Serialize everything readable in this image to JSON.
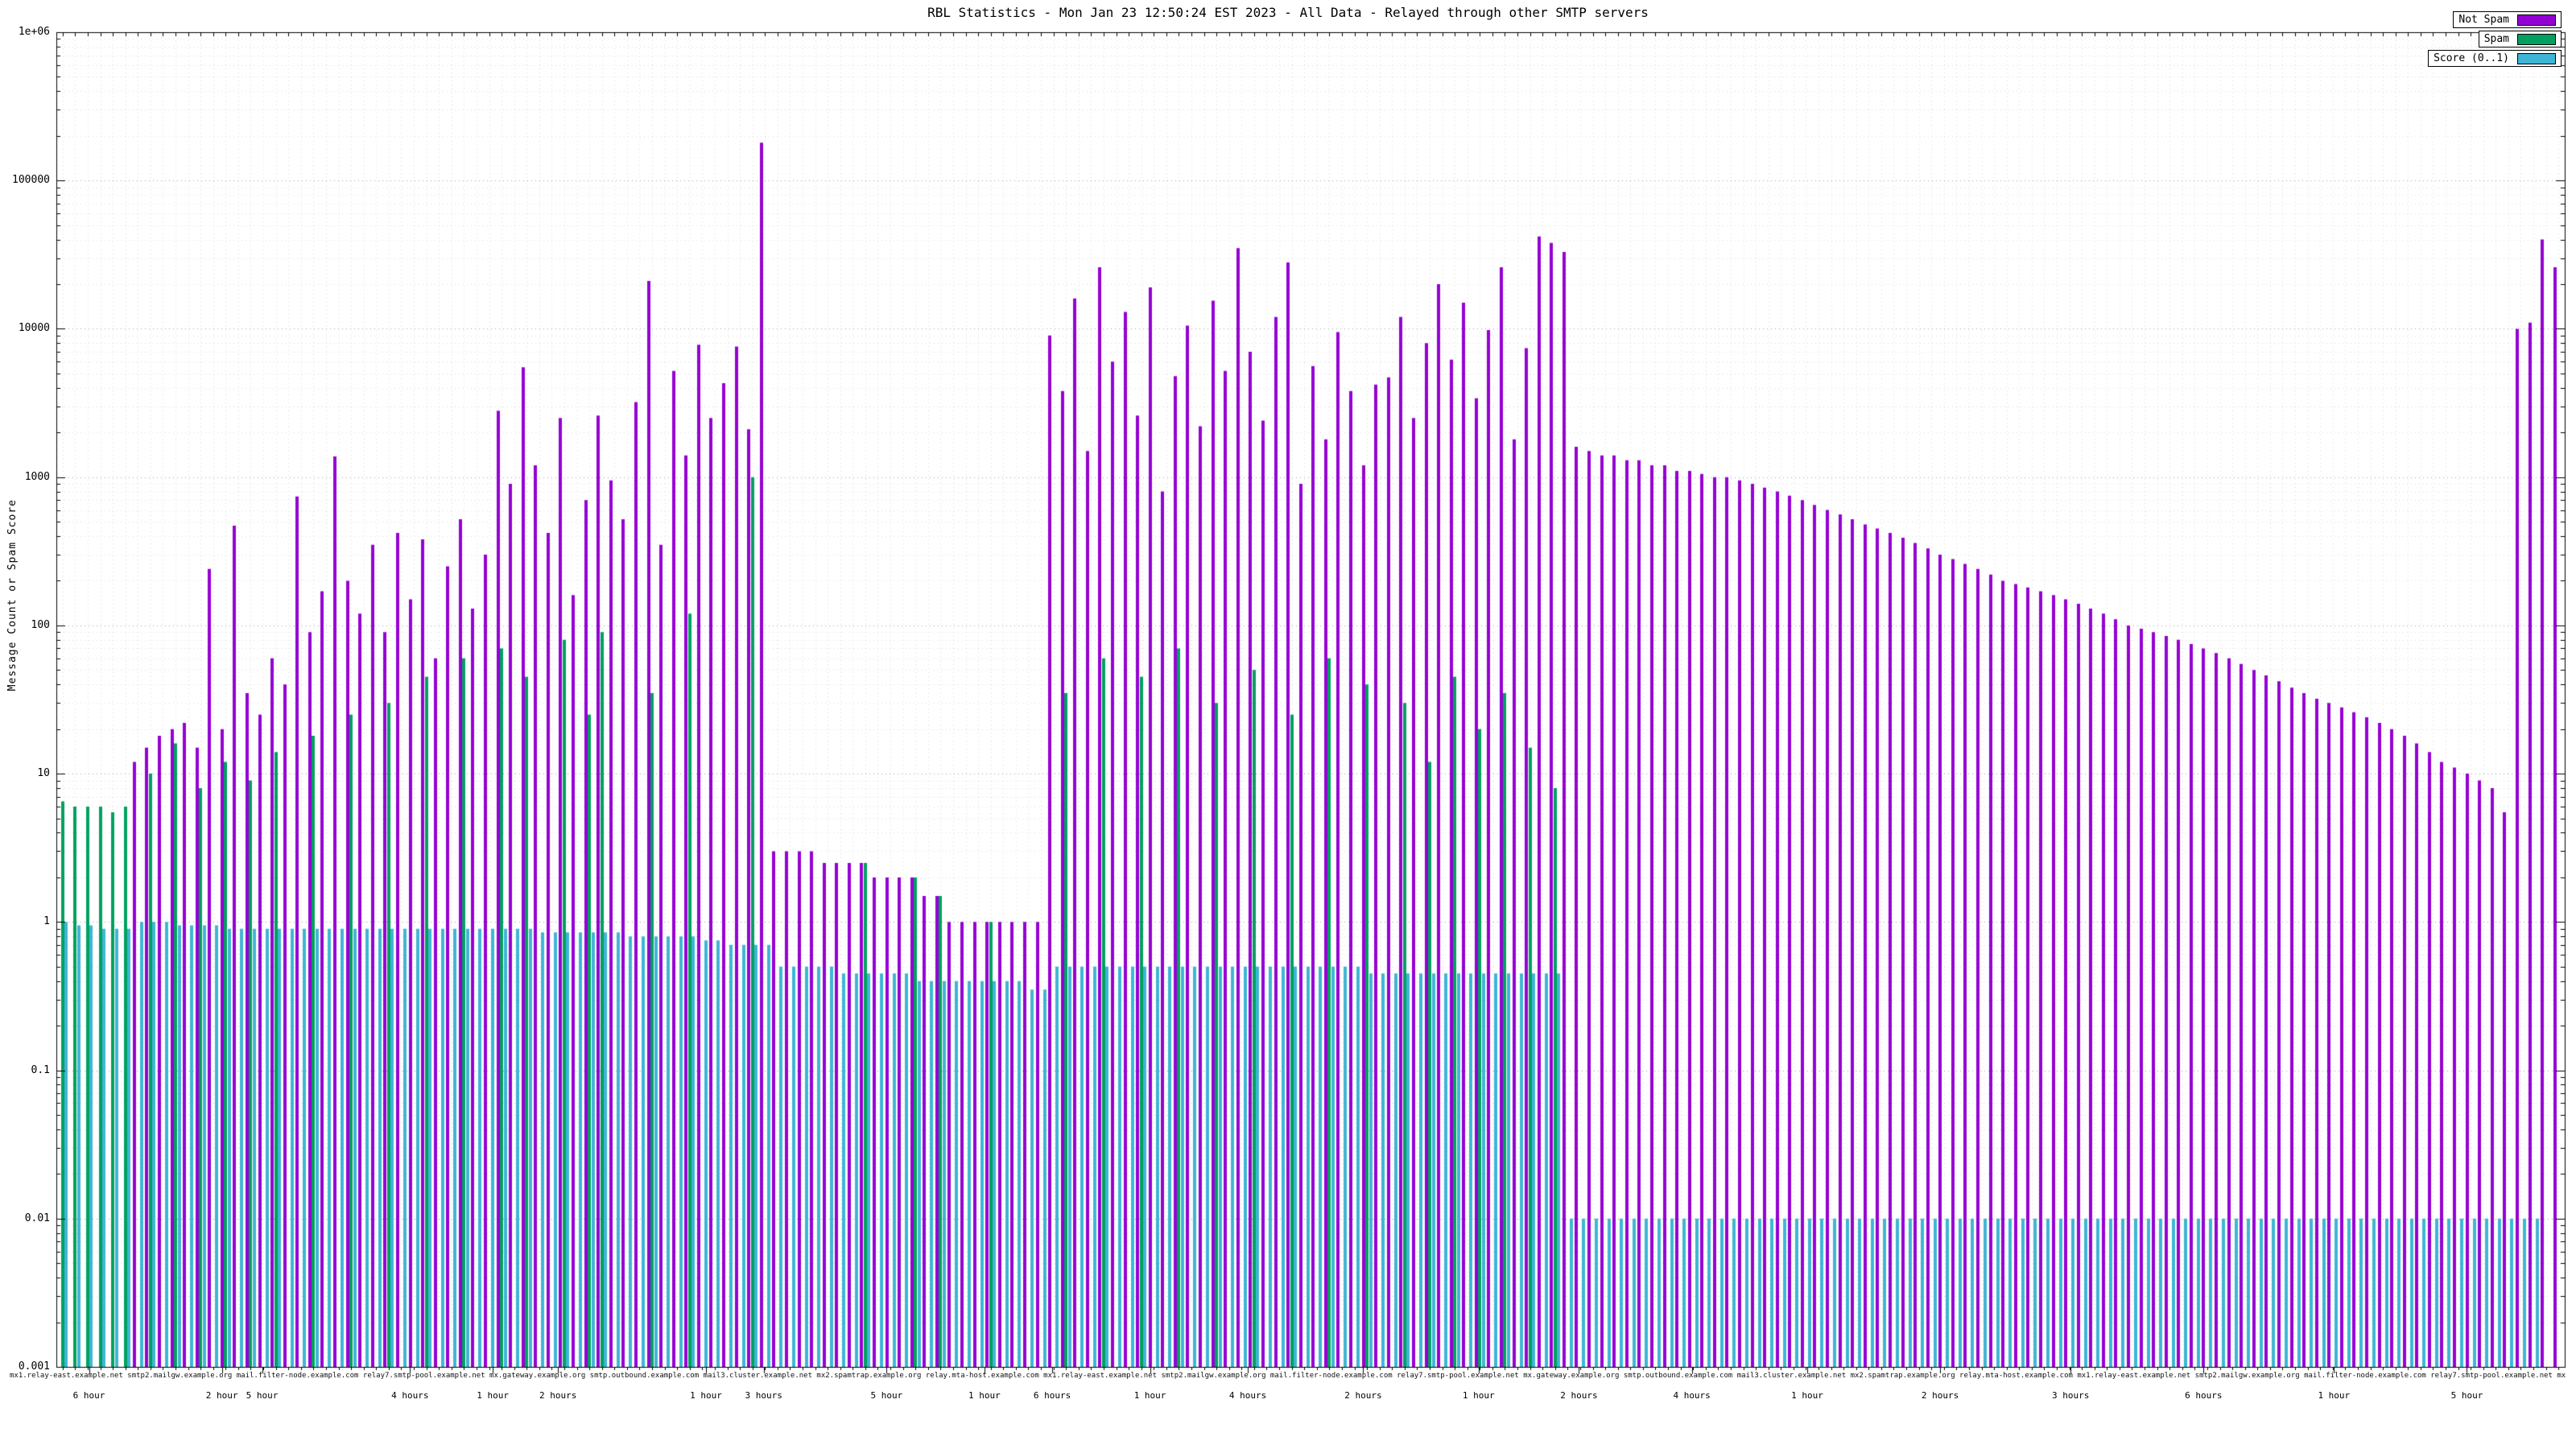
{
  "chart_data": {
    "type": "bar",
    "bar_style": "impulse",
    "title": "RBL Statistics - Mon Jan 23 12:50:24 EST 2023 - All Data - Relayed through other SMTP servers",
    "xlabel": "",
    "ylabel": "Message Count or Spam Score",
    "y_scale": "log",
    "ylim": [
      0.001,
      1000000
    ],
    "y_tick_labels": [
      "1e+06",
      "100000",
      "10000",
      "1000",
      "100",
      "10",
      "1",
      "0.1",
      "0.01",
      "0.001"
    ],
    "grid": true,
    "legend_position": "top-right",
    "n_points": 200,
    "series": [
      {
        "name": "Not Spam",
        "color": "#9400d3",
        "values": [
          0,
          0,
          0,
          0,
          0,
          0,
          12,
          15,
          18,
          20,
          22,
          15,
          240,
          20,
          470,
          35,
          25,
          60,
          40,
          740,
          90,
          170,
          1380,
          200,
          120,
          350,
          90,
          420,
          150,
          380,
          60,
          250,
          520,
          130,
          300,
          2800,
          900,
          5500,
          1200,
          420,
          2500,
          160,
          700,
          2600,
          950,
          520,
          3200,
          21000,
          350,
          5200,
          1400,
          7800,
          2500,
          4300,
          7600,
          2100,
          180000,
          3,
          3,
          3,
          3,
          2.5,
          2.5,
          2.5,
          2.5,
          2,
          2,
          2,
          2,
          1.5,
          1.5,
          1,
          1,
          1,
          1,
          1,
          1,
          1,
          1,
          9000,
          3800,
          16000,
          1500,
          26000,
          6000,
          13000,
          2600,
          19000,
          800,
          4800,
          10500,
          2200,
          15500,
          5200,
          35000,
          7000,
          2400,
          12000,
          28000,
          900,
          5600,
          1800,
          9500,
          3800,
          1200,
          4200,
          4700,
          12000,
          2500,
          8000,
          20000,
          6200,
          15000,
          3400,
          9800,
          26000,
          1800,
          7400,
          42000,
          38000,
          33000,
          1600,
          1500,
          1400,
          1400,
          1300,
          1300,
          1200,
          1200,
          1100,
          1100,
          1050,
          1000,
          1000,
          950,
          900,
          850,
          800,
          750,
          700,
          650,
          600,
          560,
          520,
          480,
          450,
          420,
          390,
          360,
          330,
          300,
          280,
          260,
          240,
          220,
          200,
          190,
          180,
          170,
          160,
          150,
          140,
          130,
          120,
          110,
          100,
          95,
          90,
          85,
          80,
          75,
          70,
          65,
          60,
          55,
          50,
          46,
          42,
          38,
          35,
          32,
          30,
          28,
          26,
          24,
          22,
          20,
          18,
          16,
          14,
          12,
          11,
          10,
          9,
          8,
          5.5,
          10000,
          11000,
          40000,
          26000
        ]
      },
      {
        "name": "Spam",
        "color": "#00a060",
        "values": [
          6.5,
          6,
          6,
          6,
          5.5,
          6,
          0,
          10,
          0,
          16,
          0,
          8,
          0,
          12,
          0,
          9,
          0,
          14,
          0,
          0,
          18,
          0,
          0,
          25,
          0,
          0,
          30,
          0,
          0,
          45,
          0,
          0,
          60,
          0,
          0,
          70,
          0,
          45,
          0,
          0,
          80,
          0,
          25,
          90,
          0,
          0,
          0,
          35,
          0,
          0,
          120,
          0,
          0,
          0,
          0,
          1000,
          0,
          0,
          0,
          0,
          0,
          0,
          0,
          0,
          2.5,
          0,
          0,
          0,
          2,
          0,
          1.5,
          0,
          0,
          0,
          1,
          0,
          0,
          0,
          0,
          0,
          35,
          0,
          0,
          60,
          0,
          0,
          45,
          0,
          0,
          70,
          0,
          0,
          30,
          0,
          0,
          50,
          0,
          0,
          25,
          0,
          0,
          60,
          0,
          0,
          40,
          0,
          0,
          30,
          0,
          12,
          0,
          45,
          0,
          20,
          0,
          35,
          0,
          15,
          0,
          8,
          0,
          0,
          0,
          0,
          0,
          0,
          0,
          0,
          0,
          0,
          0,
          0,
          0,
          0,
          0,
          0,
          0,
          0,
          0,
          0,
          0,
          0,
          0,
          0,
          0,
          0,
          0,
          0,
          0,
          0,
          0,
          0,
          0,
          0,
          0,
          0,
          0,
          0,
          0,
          0,
          0,
          0,
          0,
          0,
          0,
          0,
          0,
          0,
          0,
          0,
          0,
          0,
          0,
          0,
          0,
          0,
          0,
          0,
          0,
          0,
          0,
          0,
          0,
          0,
          0,
          0,
          0,
          0,
          0,
          0,
          0,
          0,
          0,
          0,
          0,
          0,
          0,
          0,
          0,
          0,
          0
        ]
      },
      {
        "name": "Score (0..1)",
        "color": "#3fb5d5",
        "values": [
          1,
          0.95,
          0.95,
          0.9,
          0.9,
          0.9,
          1,
          1,
          1,
          0.95,
          0.95,
          0.95,
          0.95,
          0.9,
          0.9,
          0.9,
          0.9,
          0.9,
          0.9,
          0.9,
          0.9,
          0.9,
          0.9,
          0.9,
          0.9,
          0.9,
          0.9,
          0.9,
          0.9,
          0.9,
          0.9,
          0.9,
          0.9,
          0.9,
          0.9,
          0.9,
          0.9,
          0.9,
          0.85,
          0.85,
          0.85,
          0.85,
          0.85,
          0.85,
          0.85,
          0.8,
          0.8,
          0.8,
          0.8,
          0.8,
          0.8,
          0.75,
          0.75,
          0.7,
          0.7,
          0.7,
          0.7,
          0.5,
          0.5,
          0.5,
          0.5,
          0.5,
          0.45,
          0.45,
          0.45,
          0.45,
          0.45,
          0.45,
          0.4,
          0.4,
          0.4,
          0.4,
          0.4,
          0.4,
          0.4,
          0.4,
          0.4,
          0.35,
          0.35,
          0.5,
          0.5,
          0.5,
          0.5,
          0.5,
          0.5,
          0.5,
          0.5,
          0.5,
          0.5,
          0.5,
          0.5,
          0.5,
          0.5,
          0.5,
          0.5,
          0.5,
          0.5,
          0.5,
          0.5,
          0.5,
          0.5,
          0.5,
          0.5,
          0.5,
          0.45,
          0.45,
          0.45,
          0.45,
          0.45,
          0.45,
          0.45,
          0.45,
          0.45,
          0.45,
          0.45,
          0.45,
          0.45,
          0.45,
          0.45,
          0.45,
          0.01,
          0.01,
          0.01,
          0.01,
          0.01,
          0.01,
          0.01,
          0.01,
          0.01,
          0.01,
          0.01,
          0.01,
          0.01,
          0.01,
          0.01,
          0.01,
          0.01,
          0.01,
          0.01,
          0.01,
          0.01,
          0.01,
          0.01,
          0.01,
          0.01,
          0.01,
          0.01,
          0.01,
          0.01,
          0.01,
          0.01,
          0.01,
          0.01,
          0.01,
          0.01,
          0.01,
          0.01,
          0.01,
          0.01,
          0.01,
          0.01,
          0.01,
          0.01,
          0.01,
          0.01,
          0.01,
          0.01,
          0.01,
          0.01,
          0.01,
          0.01,
          0.01,
          0.01,
          0.01,
          0.01,
          0.01,
          0.01,
          0.01,
          0.01,
          0.01,
          0.01,
          0.01,
          0.01,
          0.01,
          0.01,
          0.01,
          0.01,
          0.01,
          0.01,
          0.01,
          0.01,
          0.01,
          0.01,
          0.01,
          0.01,
          0.01,
          0.01,
          0.01
        ]
      }
    ],
    "x_time_labels": [
      {
        "f": 0.013,
        "label": "6 hour"
      },
      {
        "f": 0.066,
        "label": "2 hour"
      },
      {
        "f": 0.082,
        "label": "5 hour"
      },
      {
        "f": 0.141,
        "label": "4 hours"
      },
      {
        "f": 0.174,
        "label": "1 hour"
      },
      {
        "f": 0.2,
        "label": "2 hours"
      },
      {
        "f": 0.259,
        "label": "1 hour"
      },
      {
        "f": 0.282,
        "label": "3 hours"
      },
      {
        "f": 0.331,
        "label": "5 hour"
      },
      {
        "f": 0.37,
        "label": "1 hour"
      },
      {
        "f": 0.397,
        "label": "6 hours"
      },
      {
        "f": 0.436,
        "label": "1 hour"
      },
      {
        "f": 0.475,
        "label": "4 hours"
      },
      {
        "f": 0.521,
        "label": "2 hours"
      },
      {
        "f": 0.567,
        "label": "1 hour"
      },
      {
        "f": 0.607,
        "label": "2 hours"
      },
      {
        "f": 0.652,
        "label": "4 hours"
      },
      {
        "f": 0.698,
        "label": "1 hour"
      },
      {
        "f": 0.751,
        "label": "2 hours"
      },
      {
        "f": 0.803,
        "label": "3 hours"
      },
      {
        "f": 0.856,
        "label": "6 hours"
      },
      {
        "f": 0.908,
        "label": "1 hour"
      },
      {
        "f": 0.961,
        "label": "5 hour"
      }
    ],
    "x_dense_labels_sample": "mx1.relay-east.example.net smtp2.mailgw.example.org mail.filter-node.example.com relay7.smtp-pool.example.net mx.gateway.example.org smtp.outbound.example.com mail3.cluster.example.net mx2.spamtrap.example.org relay.mta-host.example.com"
  }
}
